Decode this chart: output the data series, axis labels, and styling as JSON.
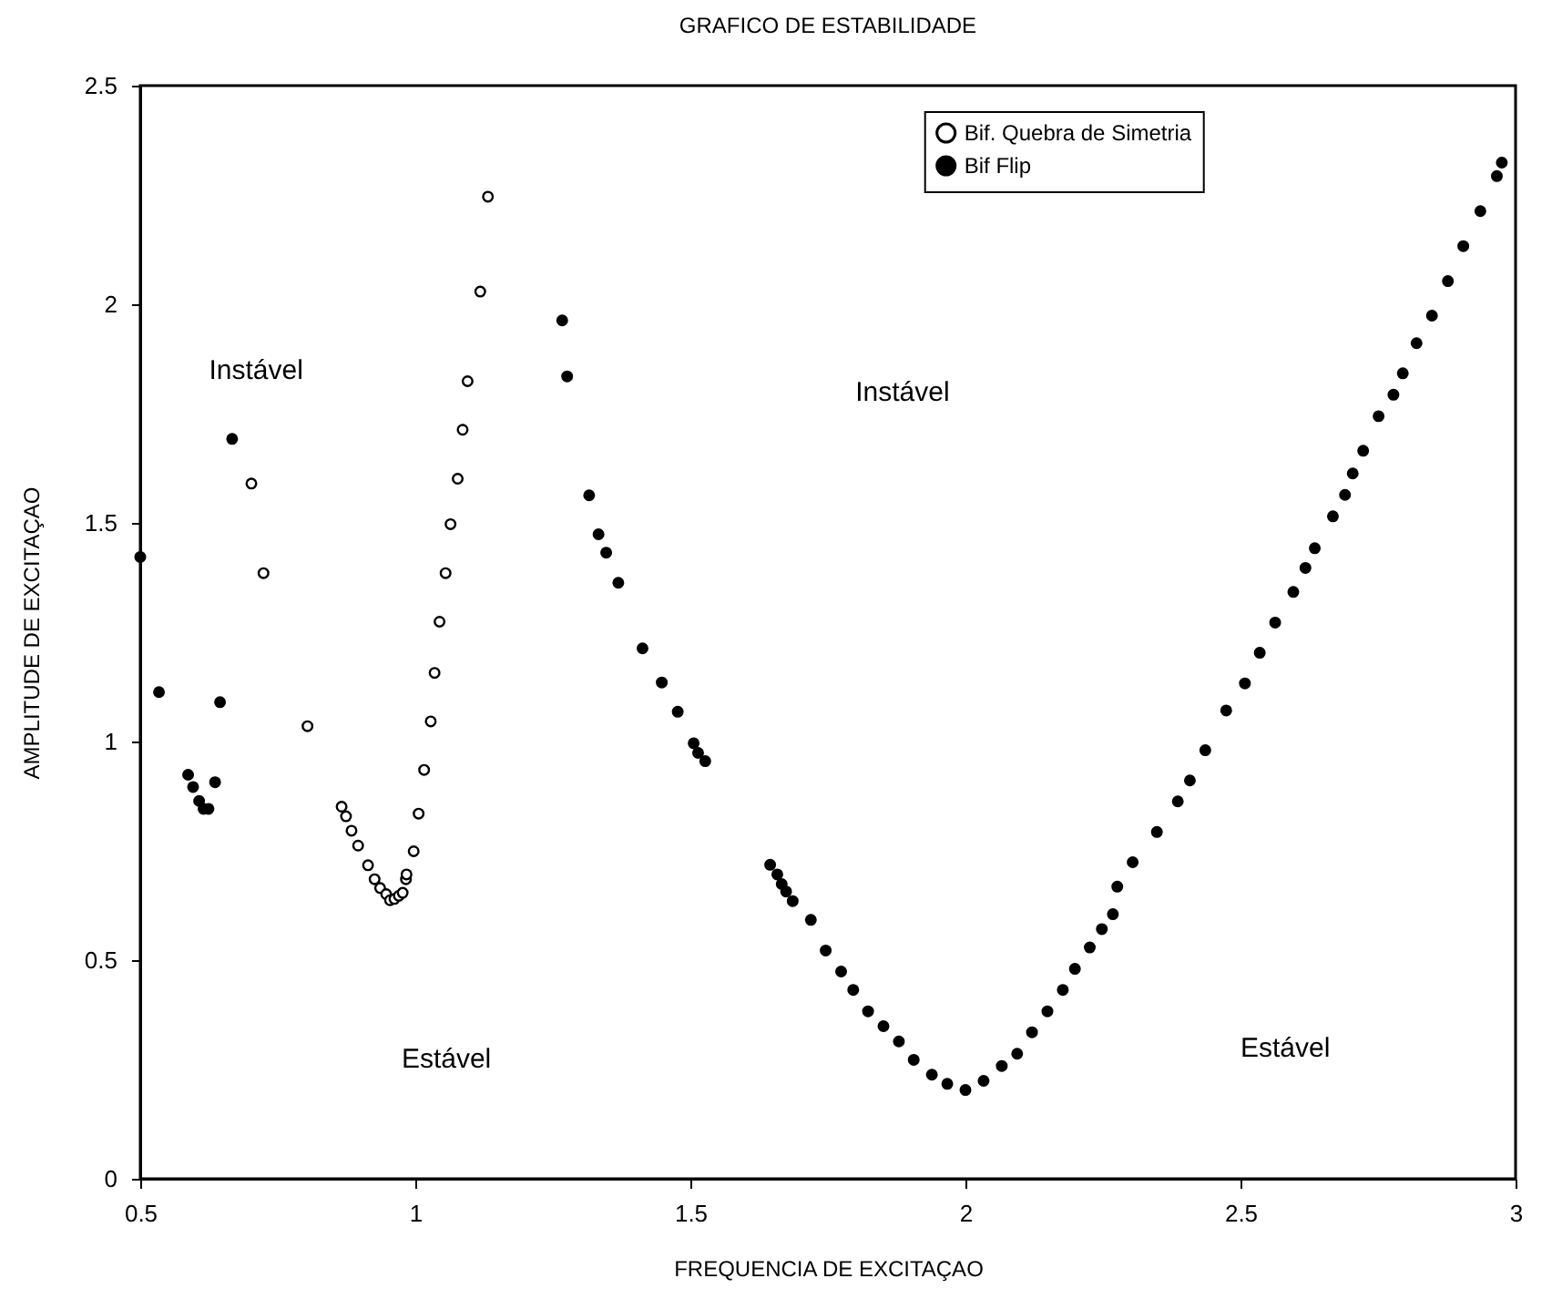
{
  "chart_data": {
    "type": "scatter",
    "title": "GRAFICO DE ESTABILIDADE",
    "xlabel": "FREQUENCIA DE EXCITAÇAO",
    "ylabel": "AMPLITUDE DE EXCITAÇAO",
    "xlim": [
      0.5,
      3
    ],
    "xticks": [
      0.5,
      1,
      1.5,
      2,
      2.5,
      3
    ],
    "ylim": [
      0,
      2.5
    ],
    "yticks": [
      0,
      0.5,
      1,
      1.5,
      2,
      2.5
    ],
    "grid": false,
    "legend": "top right",
    "marker": "circle",
    "series": [
      {
        "name": "Bif. Quebra de Simetria",
        "color": "#000000",
        "x": [
          0.702,
          0.724,
          0.804,
          0.866,
          0.874,
          0.884,
          0.896,
          0.914,
          0.926,
          0.936,
          0.947,
          0.954,
          0.962,
          0.97,
          0.977,
          0.983,
          0.984,
          0.997,
          1.006,
          1.016,
          1.028,
          1.035,
          1.044,
          1.055,
          1.064,
          1.077,
          1.086,
          1.095,
          1.118,
          1.132
        ],
        "values": [
          1.59,
          1.385,
          1.035,
          0.851,
          0.829,
          0.796,
          0.762,
          0.717,
          0.685,
          0.665,
          0.651,
          0.637,
          0.64,
          0.647,
          0.654,
          0.685,
          0.696,
          0.749,
          0.835,
          0.935,
          1.046,
          1.157,
          1.274,
          1.385,
          1.497,
          1.601,
          1.713,
          1.824,
          2.029,
          2.246
        ]
      },
      {
        "name": "Bif Flip",
        "color": "#000000",
        "x": [
          0.5,
          0.534,
          0.587,
          0.596,
          0.607,
          0.615,
          0.624,
          0.636,
          0.645,
          0.667,
          1.267,
          1.276,
          1.316,
          1.333,
          1.347,
          1.369,
          1.413,
          1.448,
          1.477,
          1.506,
          1.514,
          1.527,
          1.645,
          1.658,
          1.666,
          1.674,
          1.686,
          1.719,
          1.746,
          1.774,
          1.796,
          1.823,
          1.851,
          1.879,
          1.906,
          1.939,
          1.967,
          2.0,
          2.033,
          2.066,
          2.094,
          2.121,
          2.149,
          2.177,
          2.199,
          2.226,
          2.248,
          2.268,
          2.276,
          2.304,
          2.348,
          2.386,
          2.408,
          2.436,
          2.474,
          2.508,
          2.535,
          2.563,
          2.596,
          2.618,
          2.635,
          2.668,
          2.69,
          2.704,
          2.723,
          2.751,
          2.778,
          2.795,
          2.82,
          2.848,
          2.877,
          2.905,
          2.936,
          2.966,
          2.975
        ],
        "values": [
          1.422,
          1.113,
          0.924,
          0.896,
          0.864,
          0.846,
          0.846,
          0.907,
          1.09,
          1.692,
          1.963,
          1.835,
          1.563,
          1.474,
          1.432,
          1.363,
          1.213,
          1.135,
          1.068,
          0.996,
          0.974,
          0.955,
          0.718,
          0.696,
          0.674,
          0.657,
          0.635,
          0.592,
          0.522,
          0.474,
          0.432,
          0.383,
          0.349,
          0.314,
          0.272,
          0.238,
          0.217,
          0.203,
          0.224,
          0.258,
          0.286,
          0.335,
          0.383,
          0.432,
          0.48,
          0.529,
          0.571,
          0.605,
          0.668,
          0.724,
          0.793,
          0.863,
          0.911,
          0.98,
          1.071,
          1.133,
          1.203,
          1.272,
          1.342,
          1.397,
          1.442,
          1.515,
          1.564,
          1.613,
          1.665,
          1.744,
          1.793,
          1.842,
          1.911,
          1.974,
          2.053,
          2.133,
          2.213,
          2.293,
          2.324
        ]
      }
    ],
    "annotations": [
      "Instável",
      "Instável",
      "Estável",
      "Estável"
    ]
  }
}
